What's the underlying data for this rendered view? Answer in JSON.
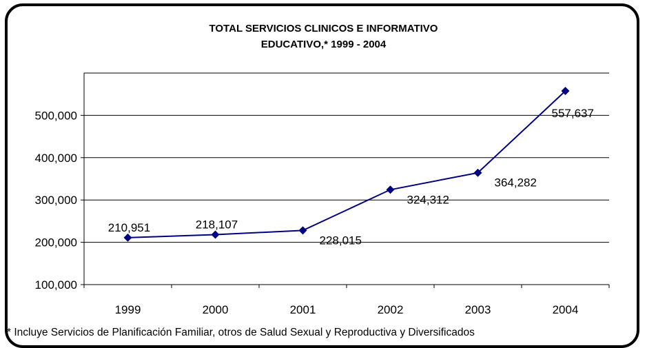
{
  "chart_data": {
    "type": "line",
    "title_lines": [
      "TOTAL SERVICIOS CLINICOS E INFORMATIVO",
      "EDUCATIVO,* 1999 - 2004"
    ],
    "x": [
      "1999",
      "2000",
      "2001",
      "2002",
      "2003",
      "2004"
    ],
    "series": [
      {
        "values": [
          210951,
          218107,
          228015,
          324312,
          364282,
          557637
        ],
        "labels": [
          "210,951",
          "218,107",
          "228,015",
          "324,312",
          "364,282",
          "557,637"
        ],
        "color": "#000080"
      }
    ],
    "ylim": [
      100000,
      600000
    ],
    "yticks": [
      100000,
      200000,
      300000,
      400000,
      500000
    ],
    "ytick_labels": [
      "100,000",
      "200,000",
      "300,000",
      "400,000",
      "500,000"
    ],
    "grid": true,
    "legend": "none",
    "footnote": "* Incluye Servicios de Planificación Familiar, otros de Salud Sexual y Reproductiva y Diversificados"
  }
}
